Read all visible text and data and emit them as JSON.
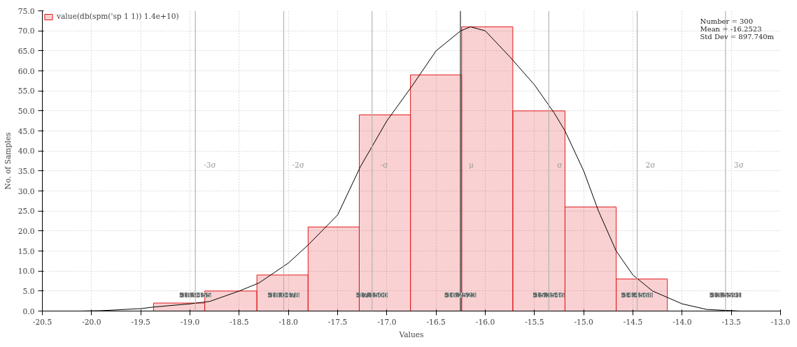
{
  "chart_data": {
    "type": "histogram",
    "xlabel": "Values",
    "ylabel": "No. of Samples",
    "series": [
      {
        "name": "value(db(spm('sp 1 1)) 1.4e+10)",
        "color": "#e31a1c",
        "bins": [
          -19.37,
          -18.85,
          -18.32,
          -17.8,
          -17.28,
          -16.76,
          -16.24,
          -15.72,
          -15.19,
          -14.67,
          -14.15
        ],
        "values": [
          2,
          5,
          9,
          21,
          49,
          59,
          71,
          50,
          26,
          8
        ]
      },
      {
        "type": "line",
        "color": "#000000",
        "x": [
          -20.12,
          -19.9,
          -19.5,
          -19.37,
          -19.0,
          -18.8,
          -18.5,
          -18.3,
          -18.0,
          -17.8,
          -17.5,
          -17.27,
          -17.0,
          -16.75,
          -16.5,
          -16.25,
          -16.15,
          -16.0,
          -15.75,
          -15.5,
          -15.3,
          -15.19,
          -15.0,
          -14.85,
          -14.67,
          -14.5,
          -14.3,
          -14.0,
          -13.75,
          -13.5,
          -13.42
        ],
        "values": [
          0,
          0.1,
          0.6,
          1.0,
          1.8,
          2.4,
          5,
          7,
          12,
          16.5,
          24,
          36,
          47.5,
          56,
          65,
          70,
          71,
          70,
          63.5,
          56.5,
          49.5,
          45,
          35,
          25,
          15,
          9,
          5,
          1.8,
          0.4,
          0.1,
          0
        ]
      }
    ],
    "xlim": [
      -20.5,
      -13.0
    ],
    "xticks": [
      {
        "value": -20.5,
        "label": "-20.5"
      },
      {
        "value": -20,
        "label": "-20.0"
      },
      {
        "value": -19.5,
        "label": "-19.5"
      },
      {
        "value": -19,
        "label": "-19.0"
      },
      {
        "value": -18.5,
        "label": "-18.5"
      },
      {
        "value": -18,
        "label": "-18.0"
      },
      {
        "value": -17.5,
        "label": "-17.5"
      },
      {
        "value": -17,
        "label": "-17.0"
      },
      {
        "value": -16.5,
        "label": "-16.5"
      },
      {
        "value": -16,
        "label": "-16.0"
      },
      {
        "value": -15.5,
        "label": "-15.5"
      },
      {
        "value": -15,
        "label": "-15.0"
      },
      {
        "value": -14.5,
        "label": "-14.5"
      },
      {
        "value": -14,
        "label": "-14.0"
      },
      {
        "value": -13.5,
        "label": "-13.5"
      },
      {
        "value": -13,
        "label": "-13.0"
      }
    ],
    "ylim": [
      0,
      75
    ],
    "yticks": [
      {
        "value": 0,
        "label": "0.0"
      },
      {
        "value": 5,
        "label": "5.0"
      },
      {
        "value": 10,
        "label": "10.0"
      },
      {
        "value": 15,
        "label": "15.0"
      },
      {
        "value": 20,
        "label": "20.0"
      },
      {
        "value": 25,
        "label": "25.0"
      },
      {
        "value": 30,
        "label": "30.0"
      },
      {
        "value": 35,
        "label": "35.0"
      },
      {
        "value": 40,
        "label": "40.0"
      },
      {
        "value": 45,
        "label": "45.0"
      },
      {
        "value": 50,
        "label": "50.0"
      },
      {
        "value": 55,
        "label": "55.0"
      },
      {
        "value": 60,
        "label": "60.0"
      },
      {
        "value": 65,
        "label": "65.0"
      },
      {
        "value": 70,
        "label": "70.0"
      },
      {
        "value": 75,
        "label": "75.0"
      }
    ],
    "ref_lines": [
      {
        "axis": "x",
        "value": -18.9455,
        "label": "-3σ",
        "color": "#b4b4b4"
      },
      {
        "axis": "x",
        "value": -18.0478,
        "label": "-2σ",
        "color": "#b4b4b4"
      },
      {
        "axis": "x",
        "value": -17.15,
        "label": "-σ",
        "color": "#b4b4b4"
      },
      {
        "axis": "x",
        "value": -16.2523,
        "label": "μ",
        "color": "#303030"
      },
      {
        "axis": "x",
        "value": -15.3546,
        "label": "σ",
        "color": "#b4b4b4"
      },
      {
        "axis": "x",
        "value": -14.4568,
        "label": "2σ",
        "color": "#b4b4b4"
      },
      {
        "axis": "x",
        "value": -13.5591,
        "label": "3σ",
        "color": "#b4b4b4"
      }
    ],
    "annotations": [
      "Number = 300",
      "Mean = -16.2523",
      "Std Dev = 897.740m",
      {
        "text": "-18.9455",
        "x": -18.9455,
        "y": 4
      },
      {
        "text": "-18.0478",
        "x": -18.0478,
        "y": 4
      },
      {
        "text": "-17.1500",
        "x": -17.15,
        "y": 4
      },
      {
        "text": "-16.2523",
        "x": -16.2523,
        "y": 4
      },
      {
        "text": "-15.3546",
        "x": -15.3546,
        "y": 4
      },
      {
        "text": "-14.4568",
        "x": -14.4568,
        "y": 4
      },
      {
        "text": "-13.5591",
        "x": -13.5591,
        "y": 4
      }
    ],
    "grid": true,
    "legend": "top left"
  }
}
